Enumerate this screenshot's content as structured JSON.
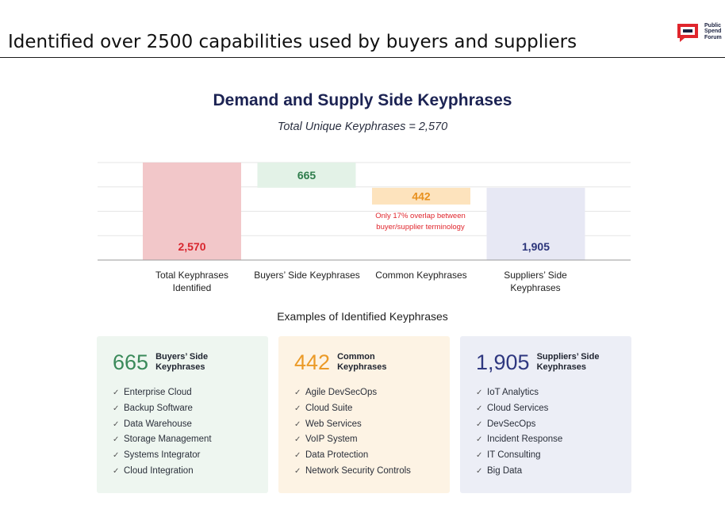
{
  "slide": {
    "title": "Identified over 2500 capabilities used by buyers and suppliers",
    "logo_text": "Public\nSpend\nForum",
    "logo_colors": {
      "red": "#e0262d",
      "navy": "#1b2240"
    }
  },
  "chart_data": {
    "type": "bar",
    "subtype": "waterfall",
    "title": "Demand and Supply Side Keyphrases",
    "subtitle": "Total Unique Keyphrases = 2,570",
    "categories": [
      "Total Keyphrases Identified",
      "Buyers’ Side Keyphrases",
      "Common Keyphrases",
      "Suppliers’ Side Keyphrases"
    ],
    "values": [
      2570,
      665,
      442,
      1905
    ],
    "value_labels": [
      "2,570",
      "665",
      "442",
      "1,905"
    ],
    "bars": [
      {
        "start": 0,
        "end": 2570,
        "color": "#f2c7c9",
        "label_color": "#d8262e"
      },
      {
        "start": 1905,
        "end": 2570,
        "color": "#e3f2e7",
        "label_color": "#2f7d4c"
      },
      {
        "start": 1463,
        "end": 1905,
        "color": "#fde3bd",
        "label_color": "#e8901d"
      },
      {
        "start": 0,
        "end": 1905,
        "color": "#e7e8f4",
        "label_color": "#2b347a"
      }
    ],
    "ylim": [
      0,
      2570
    ],
    "grid": true,
    "annotation": "Only 17% overlap between buyer/supplier terminology"
  },
  "examples": {
    "title": "Examples of Identified Keyphrases",
    "cards": [
      {
        "number": "665",
        "label": "Buyers’ Side\nKeyphrases",
        "number_color": "#3a8a5a",
        "bg": "#eef6f0",
        "items": [
          "Enterprise Cloud",
          "Backup Software",
          "Data Warehouse",
          "Storage Management",
          "Systems Integrator",
          "Cloud Integration"
        ]
      },
      {
        "number": "442",
        "label": "Common\nKeyphrases",
        "number_color": "#eb9a27",
        "bg": "#fdf3e4",
        "items": [
          "Agile DevSecOps",
          "Cloud Suite",
          "Web Services",
          "VoIP System",
          "Data Protection",
          "Network Security Controls"
        ]
      },
      {
        "number": "1,905",
        "label": "Suppliers’ Side\nKeyphrases",
        "number_color": "#2f3880",
        "bg": "#eceef6",
        "items": [
          "IoT Analytics",
          "Cloud Services",
          "DevSecOps",
          "Incident Response",
          "IT Consulting",
          "Big Data"
        ]
      }
    ]
  }
}
